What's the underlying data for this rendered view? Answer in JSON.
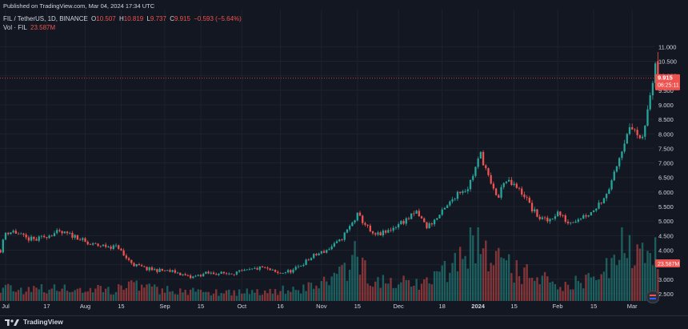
{
  "header": {
    "published": "Published on TradingView.com, Mar 04, 2024 17:34 UTC",
    "symbol": "FIL / TetherUS, 1D, BINANCE",
    "o_label": "O",
    "o_value": "10.507",
    "h_label": "H",
    "h_value": "10.819",
    "l_label": "L",
    "l_value": "9.737",
    "c_label": "C",
    "c_value": "9.915",
    "change": "−0.593 (−5.64%)",
    "vol_label": "Vol · FIL",
    "vol_value": "23.587M"
  },
  "badges": {
    "price": "9.915",
    "countdown": "06:25:11",
    "volume": "23.587M"
  },
  "footer": {
    "brand": "TradingView"
  },
  "colors": {
    "up": "#26a69a",
    "down": "#ef5350",
    "background": "#131722",
    "text": "#d1d4dc",
    "grid": "#1e222d"
  },
  "chart_data": {
    "type": "candlestick",
    "symbol": "FIL/USDT",
    "interval": "1D",
    "y_ticks": [
      "11.000",
      "10.500",
      "10.000",
      "9.500",
      "9.000",
      "8.500",
      "8.000",
      "7.500",
      "7.000",
      "6.500",
      "6.000",
      "5.500",
      "5.000",
      "4.500",
      "4.000",
      "3.500",
      "3.000",
      "2.500"
    ],
    "ylim": [
      2.25,
      11.45
    ],
    "x_ticks": [
      {
        "label": "Jul",
        "day": 0
      },
      {
        "label": "17",
        "day": 16
      },
      {
        "label": "Aug",
        "day": 31
      },
      {
        "label": "15",
        "day": 45
      },
      {
        "label": "Sep",
        "day": 62
      },
      {
        "label": "15",
        "day": 76
      },
      {
        "label": "Oct",
        "day": 92
      },
      {
        "label": "16",
        "day": 107
      },
      {
        "label": "Nov",
        "day": 123
      },
      {
        "label": "15",
        "day": 137
      },
      {
        "label": "Dec",
        "day": 153
      },
      {
        "label": "18",
        "day": 170
      },
      {
        "label": "2024",
        "day": 184
      },
      {
        "label": "15",
        "day": 198
      },
      {
        "label": "Feb",
        "day": 215
      },
      {
        "label": "15",
        "day": 229
      },
      {
        "label": "Mar",
        "day": 244
      }
    ],
    "last_price": 9.915,
    "last_price_line": 9.915,
    "keyframes": [
      [
        -2,
        4.0
      ],
      [
        0,
        4.6
      ],
      [
        3,
        4.65
      ],
      [
        8,
        4.4
      ],
      [
        12,
        4.35
      ],
      [
        16,
        4.5
      ],
      [
        20,
        4.6
      ],
      [
        24,
        4.55
      ],
      [
        28,
        4.45
      ],
      [
        32,
        4.2
      ],
      [
        38,
        4.15
      ],
      [
        44,
        4.1
      ],
      [
        46,
        3.8
      ],
      [
        50,
        3.5
      ],
      [
        55,
        3.35
      ],
      [
        60,
        3.3
      ],
      [
        66,
        3.25
      ],
      [
        72,
        3.05
      ],
      [
        78,
        3.2
      ],
      [
        86,
        3.2
      ],
      [
        92,
        3.25
      ],
      [
        100,
        3.4
      ],
      [
        106,
        3.2
      ],
      [
        112,
        3.3
      ],
      [
        116,
        3.55
      ],
      [
        120,
        3.8
      ],
      [
        125,
        4.0
      ],
      [
        130,
        4.3
      ],
      [
        134,
        4.8
      ],
      [
        137,
        5.2
      ],
      [
        140,
        4.9
      ],
      [
        143,
        4.5
      ],
      [
        148,
        4.6
      ],
      [
        153,
        4.9
      ],
      [
        157,
        5.1
      ],
      [
        160,
        5.3
      ],
      [
        164,
        4.8
      ],
      [
        168,
        5.1
      ],
      [
        172,
        5.5
      ],
      [
        176,
        6.0
      ],
      [
        180,
        6.15
      ],
      [
        182,
        6.6
      ],
      [
        185,
        7.3
      ],
      [
        187,
        6.8
      ],
      [
        189,
        6.2
      ],
      [
        192,
        5.8
      ],
      [
        194,
        6.4
      ],
      [
        198,
        6.2
      ],
      [
        202,
        5.9
      ],
      [
        205,
        5.4
      ],
      [
        208,
        5.1
      ],
      [
        211,
        5.0
      ],
      [
        215,
        5.3
      ],
      [
        219,
        4.95
      ],
      [
        223,
        5.1
      ],
      [
        228,
        5.3
      ],
      [
        232,
        5.7
      ],
      [
        236,
        6.3
      ],
      [
        239,
        7.2
      ],
      [
        242,
        8.1
      ],
      [
        245,
        8.15
      ],
      [
        247,
        7.7
      ],
      [
        249,
        8.2
      ],
      [
        251,
        9.4
      ],
      [
        253,
        10.5
      ],
      [
        254,
        9.915
      ]
    ],
    "volume_keyframes": [
      [
        -2,
        0.3
      ],
      [
        8,
        0.25
      ],
      [
        44,
        0.25
      ],
      [
        47,
        0.45
      ],
      [
        52,
        0.3
      ],
      [
        70,
        0.2
      ],
      [
        100,
        0.2
      ],
      [
        118,
        0.3
      ],
      [
        130,
        0.55
      ],
      [
        136,
        0.9
      ],
      [
        145,
        0.4
      ],
      [
        165,
        0.4
      ],
      [
        172,
        0.7
      ],
      [
        176,
        0.9
      ],
      [
        183,
        1.4
      ],
      [
        188,
        1.0
      ],
      [
        200,
        0.6
      ],
      [
        215,
        0.35
      ],
      [
        232,
        0.45
      ],
      [
        238,
        1.1
      ],
      [
        242,
        1.5
      ],
      [
        246,
        0.9
      ],
      [
        250,
        1.2
      ],
      [
        253,
        1.5
      ],
      [
        254,
        0.8
      ]
    ]
  }
}
